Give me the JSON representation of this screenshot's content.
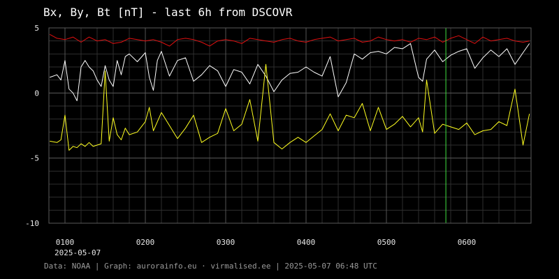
{
  "title": "Bx, By, Bt [nT] - last 6h from DSCOVR",
  "footer": "Data: NOAA | Graph: aurorainfo.eu · virmalised.ee | 2025-05-07 06:48 UTC",
  "date_label": "2025-05-07",
  "colors": {
    "background": "#000000",
    "grid": "#3a3a3a",
    "bt": "#e01010",
    "bx": "#ffffff",
    "by": "#ffff20",
    "marker": "#40e040"
  },
  "chart_data": {
    "type": "line",
    "title": "Bx, By, Bt [nT] - last 6h from DSCOVR",
    "xlabel": "",
    "ylabel": "",
    "xlim": [
      0.8,
      6.8
    ],
    "ylim": [
      -10,
      5
    ],
    "y_ticks": [
      5,
      0,
      -5,
      -10
    ],
    "x_ticks": [
      {
        "value": 1,
        "label": "0100"
      },
      {
        "value": 2,
        "label": "0200"
      },
      {
        "value": 3,
        "label": "0300"
      },
      {
        "value": 4,
        "label": "0400"
      },
      {
        "value": 5,
        "label": "0500"
      },
      {
        "value": 6,
        "label": "0600"
      }
    ],
    "grid": true,
    "marker_x": 5.74,
    "series": [
      {
        "key": "bt",
        "color": "#e01010",
        "x": [
          0.81,
          0.9,
          1.0,
          1.1,
          1.2,
          1.3,
          1.4,
          1.5,
          1.6,
          1.7,
          1.8,
          1.9,
          2.0,
          2.1,
          2.2,
          2.3,
          2.4,
          2.5,
          2.6,
          2.7,
          2.8,
          2.9,
          3.0,
          3.1,
          3.2,
          3.3,
          3.4,
          3.5,
          3.6,
          3.7,
          3.8,
          3.9,
          4.0,
          4.1,
          4.2,
          4.3,
          4.4,
          4.5,
          4.6,
          4.7,
          4.8,
          4.9,
          5.0,
          5.1,
          5.2,
          5.3,
          5.4,
          5.5,
          5.6,
          5.7,
          5.8,
          5.9,
          6.0,
          6.1,
          6.2,
          6.3,
          6.4,
          6.5,
          6.6,
          6.7,
          6.78
        ],
        "y": [
          4.5,
          4.2,
          4.1,
          4.3,
          3.9,
          4.3,
          4.0,
          4.1,
          3.8,
          3.9,
          4.2,
          4.1,
          4.0,
          4.1,
          3.9,
          3.6,
          4.1,
          4.2,
          4.1,
          3.9,
          3.6,
          4.0,
          4.1,
          4.0,
          3.8,
          4.2,
          4.1,
          4.0,
          3.9,
          4.1,
          4.2,
          4.0,
          3.9,
          4.1,
          4.2,
          4.3,
          4.0,
          4.1,
          4.2,
          3.9,
          4.0,
          4.3,
          4.1,
          4.0,
          4.1,
          3.9,
          4.2,
          4.1,
          4.3,
          3.9,
          4.2,
          4.4,
          4.1,
          3.8,
          4.3,
          4.0,
          4.1,
          4.2,
          4.0,
          3.9,
          4.0
        ]
      },
      {
        "key": "bx",
        "color": "#ffffff",
        "x": [
          0.81,
          0.9,
          0.95,
          1.0,
          1.05,
          1.1,
          1.15,
          1.2,
          1.25,
          1.3,
          1.35,
          1.4,
          1.45,
          1.5,
          1.55,
          1.6,
          1.65,
          1.7,
          1.75,
          1.8,
          1.9,
          2.0,
          2.05,
          2.1,
          2.15,
          2.2,
          2.3,
          2.4,
          2.5,
          2.6,
          2.7,
          2.8,
          2.9,
          3.0,
          3.1,
          3.2,
          3.3,
          3.4,
          3.5,
          3.6,
          3.7,
          3.8,
          3.9,
          4.0,
          4.1,
          4.2,
          4.3,
          4.4,
          4.5,
          4.6,
          4.7,
          4.8,
          4.9,
          5.0,
          5.1,
          5.2,
          5.3,
          5.4,
          5.45,
          5.5,
          5.6,
          5.7,
          5.8,
          5.9,
          6.0,
          6.1,
          6.2,
          6.3,
          6.4,
          6.5,
          6.6,
          6.7,
          6.78
        ],
        "y": [
          1.2,
          1.4,
          1.0,
          2.5,
          0.3,
          0.0,
          -0.6,
          2.0,
          2.5,
          2.0,
          1.7,
          1.0,
          0.5,
          2.1,
          1.0,
          0.5,
          2.5,
          1.4,
          2.8,
          3.0,
          2.4,
          3.1,
          1.2,
          0.2,
          2.5,
          3.2,
          1.3,
          2.5,
          2.7,
          0.9,
          1.4,
          2.1,
          1.7,
          0.5,
          1.8,
          1.6,
          0.7,
          2.2,
          1.3,
          0.1,
          1.0,
          1.5,
          1.6,
          2.0,
          1.6,
          1.3,
          2.8,
          -0.3,
          0.8,
          3.0,
          2.6,
          3.1,
          3.2,
          3.0,
          3.5,
          3.4,
          3.8,
          1.2,
          0.9,
          2.6,
          3.3,
          2.4,
          2.9,
          3.2,
          3.4,
          1.9,
          2.7,
          3.3,
          2.8,
          3.4,
          2.2,
          3.1,
          3.8
        ]
      },
      {
        "key": "by",
        "color": "#ffff20",
        "x": [
          0.81,
          0.9,
          0.95,
          1.0,
          1.05,
          1.1,
          1.15,
          1.2,
          1.25,
          1.3,
          1.35,
          1.4,
          1.45,
          1.5,
          1.55,
          1.6,
          1.65,
          1.7,
          1.75,
          1.8,
          1.9,
          2.0,
          2.05,
          2.1,
          2.2,
          2.3,
          2.4,
          2.5,
          2.6,
          2.7,
          2.8,
          2.9,
          3.0,
          3.1,
          3.2,
          3.3,
          3.4,
          3.5,
          3.6,
          3.7,
          3.8,
          3.9,
          4.0,
          4.1,
          4.2,
          4.3,
          4.4,
          4.5,
          4.6,
          4.7,
          4.8,
          4.9,
          5.0,
          5.1,
          5.2,
          5.3,
          5.4,
          5.45,
          5.5,
          5.6,
          5.7,
          5.8,
          5.9,
          6.0,
          6.1,
          6.2,
          6.3,
          6.4,
          6.5,
          6.6,
          6.7,
          6.78
        ],
        "y": [
          -3.7,
          -3.8,
          -3.6,
          -1.7,
          -4.4,
          -4.1,
          -4.2,
          -3.9,
          -4.1,
          -3.8,
          -4.1,
          -4.0,
          -3.9,
          1.7,
          -3.7,
          -1.9,
          -3.2,
          -3.6,
          -2.7,
          -3.2,
          -3.0,
          -2.2,
          -1.1,
          -2.9,
          -1.5,
          -2.5,
          -3.5,
          -2.7,
          -1.7,
          -3.8,
          -3.4,
          -3.1,
          -1.2,
          -2.9,
          -2.4,
          -0.5,
          -3.7,
          2.2,
          -3.8,
          -4.3,
          -3.8,
          -3.4,
          -3.8,
          -3.3,
          -2.8,
          -1.6,
          -2.9,
          -1.7,
          -1.9,
          -0.8,
          -2.9,
          -1.1,
          -2.8,
          -2.4,
          -1.8,
          -2.6,
          -1.9,
          -3.0,
          1.0,
          -3.1,
          -2.4,
          -2.6,
          -2.8,
          -2.3,
          -3.2,
          -2.9,
          -2.8,
          -2.2,
          -2.5,
          0.3,
          -4.0,
          -1.6
        ]
      }
    ]
  }
}
